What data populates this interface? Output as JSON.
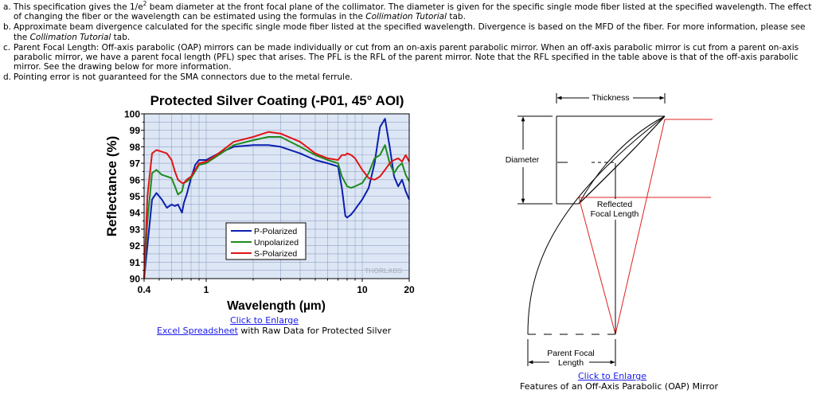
{
  "footnotes": [
    {
      "mark": "a.",
      "parts": [
        {
          "t": "This specification gives the 1/e"
        },
        {
          "t": "2",
          "sup": true
        },
        {
          "t": " beam diameter at the front focal plane of the collimator. The diameter is given for the specific single mode fiber listed at the specified wavelength. The effect of changing the fiber or the wavelength can be estimated using the formulas in the "
        },
        {
          "t": "Collimation Tutorial",
          "it": true
        },
        {
          "t": " tab."
        }
      ]
    },
    {
      "mark": "b.",
      "parts": [
        {
          "t": "Approximate beam divergence calculated for the specific single mode fiber listed at the specified wavelength. Divergence is based on the MFD of the fiber. For more information, please see the "
        },
        {
          "t": "Collimation Tutorial",
          "it": true
        },
        {
          "t": " tab."
        }
      ]
    },
    {
      "mark": "c.",
      "parts": [
        {
          "t": "Parent Focal Length: Off-axis parabolic (OAP) mirrors can be made individually or cut from an on-axis parent parabolic mirror. When an off-axis parabolic mirror is cut from a parent on-axis parabolic mirror, we have a parent focal length (PFL) spec that arises. The PFL is the RFL of the parent mirror. Note that the RFL specified in the table above is that of the off-axis parabolic mirror. See the drawing below for more information."
        }
      ]
    },
    {
      "mark": "d.",
      "parts": [
        {
          "t": "Pointing error is not guaranteed for the SMA connectors due to the metal ferrule."
        }
      ]
    }
  ],
  "chart_data": {
    "type": "line",
    "title": "Protected Silver Coating (-P01, 45° AOI)",
    "xlabel": "Wavelength (µm)",
    "ylabel": "Reflectance (%)",
    "x_scale": "log",
    "xlim": [
      0.4,
      20
    ],
    "ylim": [
      90,
      100
    ],
    "x_ticks": [
      "0.4",
      "1",
      "10",
      "20"
    ],
    "y_ticks": [
      "90",
      "91",
      "92",
      "93",
      "94",
      "95",
      "96",
      "97",
      "98",
      "99",
      "100"
    ],
    "grid": true,
    "legend_position": "lower-center",
    "watermark": "THORLABS",
    "colors": {
      "background": "#dde6f4",
      "grid": "#8fa2c8",
      "p": "#0a1fb0",
      "u": "#1d8a1d",
      "s": "#e01515"
    },
    "series": [
      {
        "name": "P-Polarized",
        "key": "p",
        "x": [
          0.4,
          0.42,
          0.45,
          0.48,
          0.52,
          0.56,
          0.6,
          0.63,
          0.66,
          0.7,
          0.72,
          0.75,
          0.8,
          0.85,
          0.9,
          1.0,
          1.2,
          1.5,
          2.0,
          2.5,
          3.0,
          4.0,
          5.0,
          6.0,
          7.0,
          7.4,
          7.8,
          8.0,
          8.5,
          9.0,
          10.0,
          11.0,
          12.0,
          13.0,
          14.0,
          15.0,
          16.0,
          17.0,
          18.0,
          19.0,
          20.0
        ],
        "values": [
          90.0,
          92.0,
          94.8,
          95.2,
          94.8,
          94.3,
          94.5,
          94.4,
          94.5,
          94.0,
          94.6,
          95.1,
          96.1,
          96.9,
          97.2,
          97.2,
          97.6,
          98.0,
          98.1,
          98.1,
          98.0,
          97.6,
          97.2,
          97.0,
          96.8,
          95.5,
          93.8,
          93.7,
          93.9,
          94.2,
          94.8,
          95.5,
          97.0,
          99.2,
          99.7,
          98.0,
          96.2,
          95.6,
          96.0,
          95.3,
          94.8
        ]
      },
      {
        "name": "Unpolarized",
        "key": "u",
        "x": [
          0.4,
          0.42,
          0.45,
          0.48,
          0.52,
          0.56,
          0.6,
          0.63,
          0.66,
          0.7,
          0.72,
          0.75,
          0.8,
          0.85,
          0.9,
          1.0,
          1.2,
          1.5,
          2.0,
          2.5,
          3.0,
          4.0,
          5.0,
          6.0,
          7.0,
          7.4,
          7.8,
          8.0,
          8.5,
          9.0,
          10.0,
          11.0,
          12.0,
          13.0,
          14.0,
          15.0,
          16.0,
          17.0,
          18.0,
          19.0,
          20.0
        ],
        "values": [
          90.0,
          93.5,
          96.4,
          96.6,
          96.3,
          96.2,
          96.1,
          95.6,
          95.1,
          95.3,
          95.8,
          95.9,
          96.1,
          96.5,
          96.9,
          97.0,
          97.5,
          98.1,
          98.4,
          98.6,
          98.6,
          98.0,
          97.5,
          97.2,
          97.0,
          96.2,
          95.8,
          95.6,
          95.5,
          95.6,
          95.8,
          96.4,
          97.3,
          97.5,
          98.1,
          97.0,
          96.4,
          96.8,
          97.0,
          96.3,
          95.9
        ]
      },
      {
        "name": "S-Polarized",
        "key": "s",
        "x": [
          0.4,
          0.42,
          0.45,
          0.48,
          0.52,
          0.56,
          0.6,
          0.63,
          0.66,
          0.7,
          0.72,
          0.75,
          0.8,
          0.85,
          0.9,
          1.0,
          1.2,
          1.5,
          2.0,
          2.5,
          3.0,
          4.0,
          5.0,
          6.0,
          7.0,
          7.4,
          7.8,
          8.0,
          8.5,
          9.0,
          10.0,
          11.0,
          12.0,
          13.0,
          14.0,
          15.0,
          16.0,
          17.0,
          18.0,
          19.0,
          20.0
        ],
        "values": [
          90.0,
          95.0,
          97.6,
          97.8,
          97.7,
          97.6,
          97.2,
          96.5,
          96.0,
          95.8,
          95.8,
          96.0,
          96.2,
          96.6,
          97.0,
          97.1,
          97.6,
          98.3,
          98.6,
          98.9,
          98.8,
          98.3,
          97.6,
          97.3,
          97.2,
          97.5,
          97.5,
          97.6,
          97.5,
          97.3,
          96.6,
          96.1,
          96.0,
          96.2,
          96.6,
          97.0,
          97.2,
          97.3,
          97.1,
          97.5,
          97.1
        ]
      }
    ]
  },
  "chart_links": {
    "enlarge": "Click to Enlarge",
    "spreadsheet_link": "Excel Spreadsheet",
    "spreadsheet_suffix": " with Raw Data for Protected Silver"
  },
  "diagram": {
    "labels": {
      "thickness": "Thickness",
      "diameter": "Diameter",
      "rfl_line1": "Reflected",
      "rfl_line2": "Focal Length",
      "pfl_line1": "Parent Focal",
      "pfl_line2": "Length"
    },
    "enlarge": "Click to Enlarge",
    "caption": "Features of an Off-Axis Parabolic (OAP) Mirror",
    "colors": {
      "lines": "#000000",
      "rays": "#e02020"
    }
  }
}
